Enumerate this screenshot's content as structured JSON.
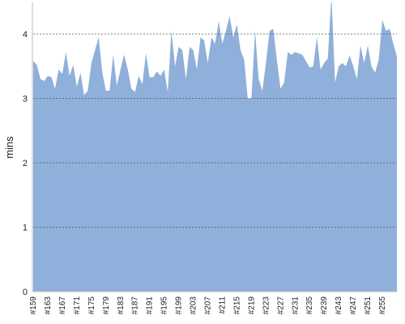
{
  "chart_data": {
    "type": "area",
    "y_label": "mins",
    "color": "#8fb0da",
    "categories": [
      "#159",
      null,
      null,
      null,
      "#163",
      null,
      null,
      null,
      "#167",
      null,
      null,
      null,
      "#171",
      null,
      null,
      null,
      "#175",
      null,
      null,
      null,
      "#179",
      null,
      null,
      null,
      "#183",
      null,
      null,
      null,
      "#187",
      null,
      null,
      null,
      "#191",
      null,
      null,
      null,
      "#195",
      null,
      null,
      null,
      "#199",
      null,
      null,
      null,
      "#203",
      null,
      null,
      null,
      "#207",
      null,
      null,
      null,
      "#211",
      null,
      null,
      null,
      "#215",
      null,
      null,
      null,
      "#219",
      null,
      null,
      null,
      "#223",
      null,
      null,
      null,
      "#227",
      null,
      null,
      null,
      "#231",
      null,
      null,
      null,
      "#235",
      null,
      null,
      null,
      "#239",
      null,
      null,
      null,
      "#243",
      null,
      null,
      null,
      "#247",
      null,
      null,
      null,
      "#251",
      null,
      null,
      null,
      "#255",
      null,
      null,
      null,
      null
    ],
    "values": [
      3.58,
      3.52,
      3.3,
      3.27,
      3.35,
      3.33,
      3.15,
      3.45,
      3.38,
      3.72,
      3.35,
      3.52,
      3.18,
      3.4,
      3.05,
      3.12,
      3.55,
      3.75,
      3.95,
      3.4,
      3.12,
      3.12,
      3.68,
      3.2,
      3.45,
      3.68,
      3.45,
      3.15,
      3.1,
      3.35,
      3.22,
      3.7,
      3.33,
      3.33,
      3.42,
      3.35,
      3.45,
      3.1,
      4.05,
      3.5,
      3.8,
      3.75,
      3.3,
      3.8,
      3.75,
      3.45,
      3.95,
      3.9,
      3.55,
      3.95,
      3.85,
      4.2,
      3.85,
      4.05,
      4.28,
      3.95,
      4.15,
      3.75,
      3.6,
      3.0,
      3.0,
      4.05,
      3.3,
      3.12,
      3.55,
      4.05,
      4.08,
      3.6,
      3.15,
      3.25,
      3.72,
      3.68,
      3.72,
      3.7,
      3.68,
      3.58,
      3.48,
      3.5,
      3.95,
      3.45,
      3.55,
      3.62,
      4.6,
      3.25,
      3.5,
      3.55,
      3.5,
      3.67,
      3.5,
      3.3,
      3.82,
      3.55,
      3.82,
      3.5,
      3.4,
      3.6,
      4.22,
      4.05,
      4.08,
      3.85,
      3.65
    ],
    "ylim": [
      0,
      4.5
    ],
    "yticks": [
      0,
      1,
      2,
      3,
      4
    ],
    "grid": true
  }
}
